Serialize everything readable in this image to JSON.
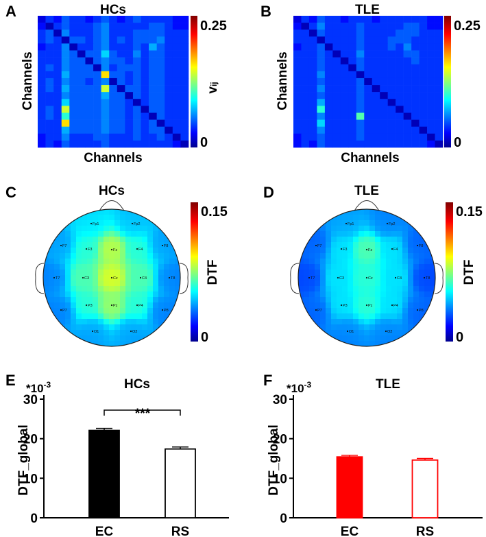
{
  "colors": {
    "ec_hcs": "#000000",
    "rs_hcs": "#ffffff",
    "ec_tle": "#ff0000",
    "rs_tle": "#ffffff",
    "rs_tle_edge": "#ff0000",
    "jet": [
      "#00008f",
      "#0000ff",
      "#00ffff",
      "#ffff00",
      "#ff0000",
      "#800000"
    ]
  },
  "panels": {
    "A": {
      "letter": "A",
      "title": "HCs",
      "xlabel": "Channels",
      "ylabel": "Channels",
      "cbar_max": "0.25",
      "cbar_min": "0",
      "cbar_label_main": "v",
      "cbar_label_sub": "ij"
    },
    "B": {
      "letter": "B",
      "title": "TLE",
      "xlabel": "Channels",
      "ylabel": "Channels",
      "cbar_max": "0.25",
      "cbar_min": "0"
    },
    "C": {
      "letter": "C",
      "title": "HCs",
      "cbar_max": "0.15",
      "cbar_min": "0",
      "cbar_label": "DTF"
    },
    "D": {
      "letter": "D",
      "title": "TLE",
      "cbar_max": "0.15",
      "cbar_min": "0",
      "cbar_label": "DTF"
    },
    "E": {
      "letter": "E",
      "title": "HCs",
      "multiplier_base": "*10",
      "multiplier_exp": "-3",
      "ylabel": "DTF_global",
      "significance": "***"
    },
    "F": {
      "letter": "F",
      "title": "TLE",
      "multiplier_base": "*10",
      "multiplier_exp": "-3",
      "ylabel": "DTF_global"
    }
  },
  "chart_data": [
    {
      "panel": "A",
      "type": "heatmap",
      "title": "HCs",
      "xlabel": "Channels",
      "ylabel": "Channels",
      "color_range": [
        0,
        0.25
      ],
      "colorbar_label": "vij",
      "values": [
        [
          0.02,
          0.04,
          0.03,
          0.05,
          0.04,
          0.04,
          0.03,
          0.04,
          0.05,
          0.04,
          0.03,
          0.04,
          0.05,
          0.04,
          0.04,
          0.04,
          0.04,
          0.03,
          0.03
        ],
        [
          0.03,
          0.01,
          0.04,
          0.05,
          0.04,
          0.04,
          0.04,
          0.05,
          0.06,
          0.04,
          0.04,
          0.04,
          0.04,
          0.04,
          0.05,
          0.05,
          0.04,
          0.03,
          0.03
        ],
        [
          0.04,
          0.05,
          0.01,
          0.06,
          0.04,
          0.04,
          0.04,
          0.05,
          0.06,
          0.04,
          0.04,
          0.04,
          0.05,
          0.05,
          0.05,
          0.05,
          0.04,
          0.04,
          0.04
        ],
        [
          0.04,
          0.05,
          0.04,
          0.01,
          0.05,
          0.05,
          0.04,
          0.05,
          0.06,
          0.04,
          0.05,
          0.04,
          0.05,
          0.05,
          0.05,
          0.06,
          0.04,
          0.04,
          0.04
        ],
        [
          0.03,
          0.04,
          0.04,
          0.06,
          0.01,
          0.04,
          0.04,
          0.05,
          0.06,
          0.04,
          0.04,
          0.04,
          0.05,
          0.04,
          0.07,
          0.05,
          0.04,
          0.04,
          0.04
        ],
        [
          0.04,
          0.04,
          0.04,
          0.06,
          0.05,
          0.01,
          0.05,
          0.05,
          0.08,
          0.05,
          0.04,
          0.04,
          0.06,
          0.04,
          0.05,
          0.05,
          0.04,
          0.04,
          0.04
        ],
        [
          0.04,
          0.04,
          0.04,
          0.06,
          0.05,
          0.05,
          0.01,
          0.05,
          0.06,
          0.05,
          0.05,
          0.04,
          0.05,
          0.04,
          0.05,
          0.05,
          0.04,
          0.04,
          0.04
        ],
        [
          0.04,
          0.05,
          0.04,
          0.06,
          0.05,
          0.05,
          0.05,
          0.01,
          0.06,
          0.04,
          0.05,
          0.05,
          0.05,
          0.04,
          0.05,
          0.05,
          0.04,
          0.04,
          0.04
        ],
        [
          0.04,
          0.04,
          0.04,
          0.07,
          0.05,
          0.05,
          0.05,
          0.05,
          0.16,
          0.05,
          0.05,
          0.04,
          0.05,
          0.04,
          0.05,
          0.05,
          0.04,
          0.04,
          0.04
        ],
        [
          0.04,
          0.05,
          0.04,
          0.06,
          0.05,
          0.05,
          0.04,
          0.05,
          0.06,
          0.01,
          0.05,
          0.04,
          0.05,
          0.04,
          0.05,
          0.05,
          0.04,
          0.04,
          0.04
        ],
        [
          0.04,
          0.05,
          0.04,
          0.07,
          0.05,
          0.05,
          0.05,
          0.05,
          0.14,
          0.05,
          0.01,
          0.05,
          0.05,
          0.04,
          0.05,
          0.05,
          0.04,
          0.04,
          0.04
        ],
        [
          0.04,
          0.04,
          0.04,
          0.06,
          0.05,
          0.05,
          0.05,
          0.05,
          0.07,
          0.05,
          0.05,
          0.01,
          0.05,
          0.04,
          0.05,
          0.05,
          0.04,
          0.04,
          0.04
        ],
        [
          0.04,
          0.04,
          0.04,
          0.08,
          0.05,
          0.05,
          0.05,
          0.05,
          0.06,
          0.05,
          0.05,
          0.04,
          0.01,
          0.04,
          0.05,
          0.05,
          0.04,
          0.04,
          0.04
        ],
        [
          0.04,
          0.05,
          0.04,
          0.14,
          0.05,
          0.05,
          0.05,
          0.05,
          0.06,
          0.05,
          0.05,
          0.04,
          0.05,
          0.01,
          0.05,
          0.05,
          0.04,
          0.04,
          0.04
        ],
        [
          0.04,
          0.05,
          0.04,
          0.1,
          0.05,
          0.05,
          0.05,
          0.05,
          0.06,
          0.05,
          0.05,
          0.04,
          0.05,
          0.04,
          0.01,
          0.05,
          0.04,
          0.04,
          0.04
        ],
        [
          0.04,
          0.04,
          0.04,
          0.16,
          0.05,
          0.05,
          0.05,
          0.05,
          0.06,
          0.05,
          0.05,
          0.04,
          0.05,
          0.04,
          0.05,
          0.01,
          0.04,
          0.04,
          0.04
        ],
        [
          0.04,
          0.04,
          0.04,
          0.07,
          0.05,
          0.05,
          0.05,
          0.05,
          0.06,
          0.05,
          0.05,
          0.04,
          0.05,
          0.04,
          0.05,
          0.05,
          0.01,
          0.04,
          0.04
        ],
        [
          0.03,
          0.04,
          0.04,
          0.06,
          0.04,
          0.04,
          0.04,
          0.05,
          0.05,
          0.04,
          0.04,
          0.04,
          0.05,
          0.04,
          0.04,
          0.05,
          0.04,
          0.01,
          0.04
        ],
        [
          0.03,
          0.04,
          0.03,
          0.05,
          0.04,
          0.04,
          0.04,
          0.04,
          0.05,
          0.04,
          0.04,
          0.04,
          0.04,
          0.04,
          0.04,
          0.04,
          0.04,
          0.03,
          0.01
        ]
      ]
    },
    {
      "panel": "B",
      "type": "heatmap",
      "title": "TLE",
      "xlabel": "Channels",
      "ylabel": "Channels",
      "color_range": [
        0,
        0.25
      ],
      "values": [
        [
          0.02,
          0.04,
          0.03,
          0.05,
          0.04,
          0.04,
          0.03,
          0.04,
          0.04,
          0.04,
          0.03,
          0.04,
          0.04,
          0.04,
          0.04,
          0.04,
          0.04,
          0.03,
          0.03
        ],
        [
          0.03,
          0.01,
          0.04,
          0.06,
          0.04,
          0.04,
          0.04,
          0.04,
          0.05,
          0.04,
          0.04,
          0.04,
          0.04,
          0.04,
          0.05,
          0.05,
          0.04,
          0.03,
          0.03
        ],
        [
          0.04,
          0.04,
          0.01,
          0.05,
          0.04,
          0.04,
          0.04,
          0.04,
          0.05,
          0.04,
          0.04,
          0.04,
          0.04,
          0.05,
          0.05,
          0.05,
          0.04,
          0.04,
          0.04
        ],
        [
          0.04,
          0.04,
          0.04,
          0.01,
          0.04,
          0.04,
          0.04,
          0.04,
          0.05,
          0.04,
          0.04,
          0.04,
          0.05,
          0.05,
          0.05,
          0.04,
          0.04,
          0.04,
          0.04
        ],
        [
          0.03,
          0.04,
          0.04,
          0.05,
          0.01,
          0.04,
          0.04,
          0.04,
          0.05,
          0.04,
          0.04,
          0.04,
          0.05,
          0.04,
          0.06,
          0.04,
          0.04,
          0.04,
          0.04
        ],
        [
          0.04,
          0.04,
          0.04,
          0.05,
          0.04,
          0.01,
          0.04,
          0.04,
          0.06,
          0.04,
          0.04,
          0.04,
          0.04,
          0.04,
          0.05,
          0.05,
          0.04,
          0.04,
          0.04
        ],
        [
          0.04,
          0.04,
          0.04,
          0.05,
          0.04,
          0.04,
          0.01,
          0.04,
          0.05,
          0.04,
          0.04,
          0.04,
          0.04,
          0.04,
          0.04,
          0.05,
          0.04,
          0.04,
          0.04
        ],
        [
          0.04,
          0.04,
          0.04,
          0.05,
          0.04,
          0.04,
          0.04,
          0.01,
          0.05,
          0.04,
          0.04,
          0.04,
          0.04,
          0.04,
          0.04,
          0.04,
          0.04,
          0.04,
          0.04
        ],
        [
          0.04,
          0.04,
          0.04,
          0.06,
          0.04,
          0.04,
          0.04,
          0.04,
          0.01,
          0.04,
          0.04,
          0.04,
          0.04,
          0.04,
          0.04,
          0.04,
          0.04,
          0.04,
          0.04
        ],
        [
          0.04,
          0.04,
          0.04,
          0.05,
          0.04,
          0.04,
          0.04,
          0.04,
          0.05,
          0.01,
          0.04,
          0.04,
          0.04,
          0.04,
          0.04,
          0.04,
          0.04,
          0.04,
          0.04
        ],
        [
          0.04,
          0.04,
          0.04,
          0.06,
          0.04,
          0.04,
          0.04,
          0.04,
          0.05,
          0.04,
          0.01,
          0.04,
          0.04,
          0.04,
          0.04,
          0.04,
          0.04,
          0.04,
          0.04
        ],
        [
          0.04,
          0.04,
          0.04,
          0.05,
          0.04,
          0.04,
          0.04,
          0.04,
          0.05,
          0.04,
          0.04,
          0.01,
          0.04,
          0.04,
          0.04,
          0.04,
          0.04,
          0.04,
          0.04
        ],
        [
          0.04,
          0.04,
          0.04,
          0.07,
          0.04,
          0.04,
          0.04,
          0.04,
          0.05,
          0.04,
          0.04,
          0.04,
          0.01,
          0.04,
          0.04,
          0.04,
          0.04,
          0.04,
          0.04
        ],
        [
          0.04,
          0.04,
          0.04,
          0.1,
          0.04,
          0.04,
          0.04,
          0.04,
          0.05,
          0.04,
          0.04,
          0.04,
          0.04,
          0.01,
          0.04,
          0.04,
          0.04,
          0.04,
          0.04
        ],
        [
          0.04,
          0.04,
          0.04,
          0.06,
          0.04,
          0.04,
          0.04,
          0.04,
          0.11,
          0.04,
          0.04,
          0.04,
          0.04,
          0.04,
          0.01,
          0.04,
          0.04,
          0.04,
          0.04
        ],
        [
          0.04,
          0.04,
          0.04,
          0.08,
          0.04,
          0.04,
          0.04,
          0.04,
          0.05,
          0.04,
          0.04,
          0.04,
          0.04,
          0.04,
          0.04,
          0.01,
          0.04,
          0.04,
          0.04
        ],
        [
          0.04,
          0.04,
          0.04,
          0.06,
          0.04,
          0.04,
          0.04,
          0.04,
          0.05,
          0.04,
          0.04,
          0.04,
          0.04,
          0.04,
          0.04,
          0.04,
          0.01,
          0.04,
          0.04
        ],
        [
          0.03,
          0.04,
          0.04,
          0.05,
          0.04,
          0.04,
          0.04,
          0.04,
          0.05,
          0.04,
          0.04,
          0.04,
          0.04,
          0.04,
          0.04,
          0.04,
          0.04,
          0.01,
          0.04
        ],
        [
          0.03,
          0.04,
          0.03,
          0.05,
          0.04,
          0.04,
          0.04,
          0.04,
          0.04,
          0.04,
          0.04,
          0.04,
          0.04,
          0.04,
          0.04,
          0.04,
          0.04,
          0.03,
          0.01
        ]
      ]
    },
    {
      "panel": "C",
      "type": "heatmap",
      "title": "HCs",
      "color_range": [
        0,
        0.15
      ],
      "colorbar_label": "DTF",
      "channels": [
        {
          "label": "Fp1",
          "value": 0.055
        },
        {
          "label": "Fp2",
          "value": 0.05
        },
        {
          "label": "F7",
          "value": 0.045
        },
        {
          "label": "F3",
          "value": 0.06
        },
        {
          "label": "Fz",
          "value": 0.08
        },
        {
          "label": "F4",
          "value": 0.06
        },
        {
          "label": "F8",
          "value": 0.045
        },
        {
          "label": "T7",
          "value": 0.04
        },
        {
          "label": "C3",
          "value": 0.065
        },
        {
          "label": "Cz",
          "value": 0.085
        },
        {
          "label": "C4",
          "value": 0.065
        },
        {
          "label": "T8",
          "value": 0.04
        },
        {
          "label": "P7",
          "value": 0.04
        },
        {
          "label": "P3",
          "value": 0.06
        },
        {
          "label": "Pz",
          "value": 0.075
        },
        {
          "label": "P4",
          "value": 0.06
        },
        {
          "label": "P8",
          "value": 0.04
        },
        {
          "label": "O1",
          "value": 0.045
        },
        {
          "label": "O2",
          "value": 0.045
        }
      ]
    },
    {
      "panel": "D",
      "type": "heatmap",
      "title": "TLE",
      "color_range": [
        0,
        0.15
      ],
      "colorbar_label": "DTF",
      "channels": [
        {
          "label": "Fp1",
          "value": 0.045
        },
        {
          "label": "Fp2",
          "value": 0.04
        },
        {
          "label": "F7",
          "value": 0.035
        },
        {
          "label": "F3",
          "value": 0.05
        },
        {
          "label": "Fz",
          "value": 0.065
        },
        {
          "label": "F4",
          "value": 0.05
        },
        {
          "label": "F8",
          "value": 0.035
        },
        {
          "label": "T7",
          "value": 0.03
        },
        {
          "label": "C3",
          "value": 0.05
        },
        {
          "label": "Cz",
          "value": 0.06
        },
        {
          "label": "C4",
          "value": 0.05
        },
        {
          "label": "T8",
          "value": 0.03
        },
        {
          "label": "P7",
          "value": 0.035
        },
        {
          "label": "P3",
          "value": 0.05
        },
        {
          "label": "Pz",
          "value": 0.06
        },
        {
          "label": "P4",
          "value": 0.05
        },
        {
          "label": "P8",
          "value": 0.035
        },
        {
          "label": "O1",
          "value": 0.04
        },
        {
          "label": "O2",
          "value": 0.04
        }
      ]
    },
    {
      "panel": "E",
      "type": "bar",
      "title": "HCs",
      "ylabel": "DTF_global",
      "ylim": [
        0,
        30
      ],
      "yticks": [
        0,
        10,
        20,
        30
      ],
      "categories": [
        "EC",
        "RS"
      ],
      "values": [
        22.1,
        17.4
      ],
      "errors": [
        0.5,
        0.5
      ],
      "significance": "***"
    },
    {
      "panel": "F",
      "type": "bar",
      "title": "TLE",
      "ylabel": "DTF_global",
      "ylim": [
        0,
        30
      ],
      "yticks": [
        0,
        10,
        20,
        30
      ],
      "categories": [
        "EC",
        "RS"
      ],
      "values": [
        15.4,
        14.6
      ],
      "errors": [
        0.4,
        0.4
      ]
    }
  ]
}
